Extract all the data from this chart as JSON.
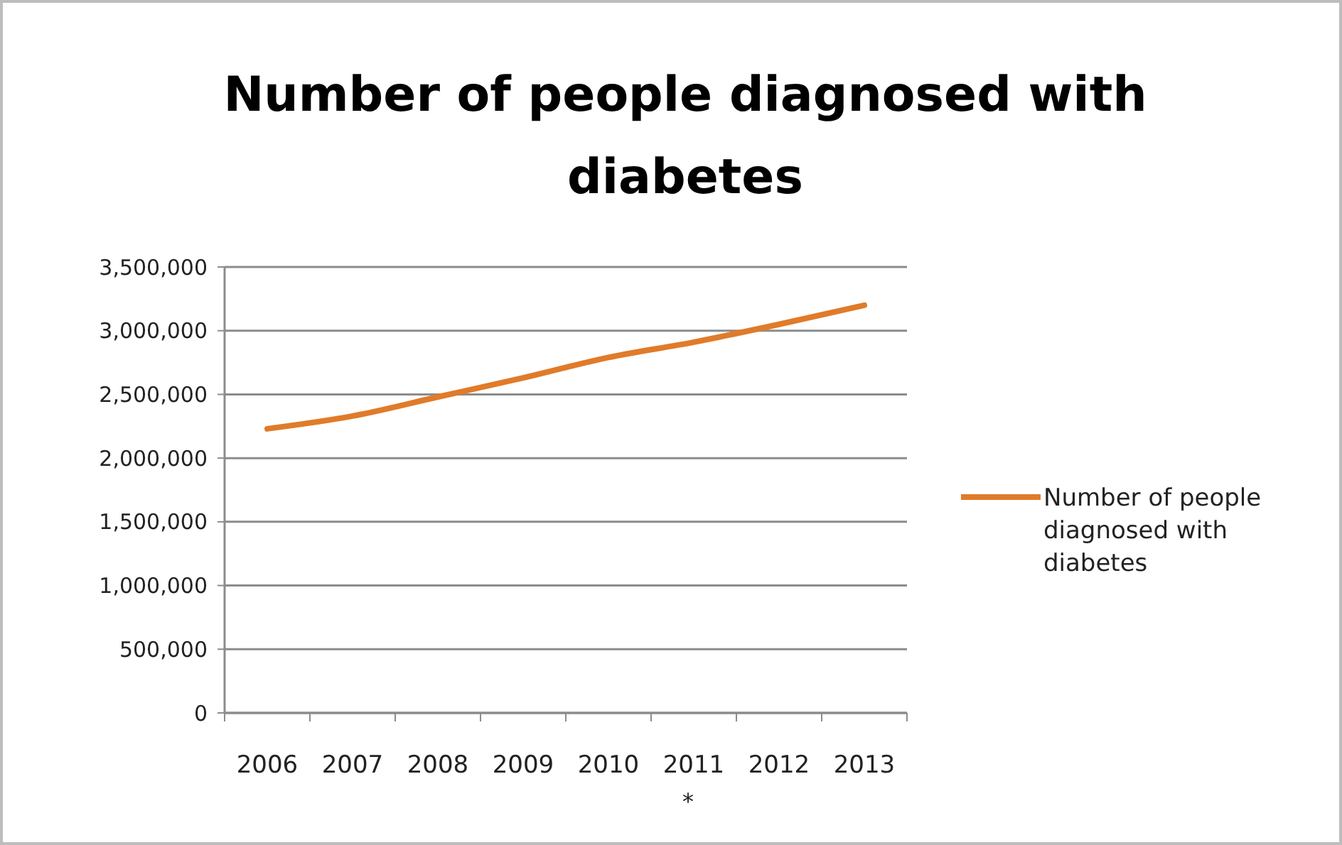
{
  "chart_data": {
    "type": "line",
    "title": "Number of people diagnosed with diabetes",
    "categories": [
      "2006",
      "2007",
      "2008",
      "2009",
      "2010",
      "2011",
      "2012",
      "2013"
    ],
    "series": [
      {
        "name": "Number of people diagnosed with diabetes",
        "color": "#e07b2a",
        "values": [
          2230000,
          2330000,
          2480000,
          2630000,
          2790000,
          2910000,
          3050000,
          3200000
        ]
      }
    ],
    "ylim": [
      0,
      3500000
    ],
    "yticks": [
      {
        "value": 0,
        "label": "0"
      },
      {
        "value": 500000,
        "label": "500,000"
      },
      {
        "value": 1000000,
        "label": "1,000,000"
      },
      {
        "value": 1500000,
        "label": "1,500,000"
      },
      {
        "value": 2000000,
        "label": "2,000,000"
      },
      {
        "value": 2500000,
        "label": "2,500,000"
      },
      {
        "value": 3000000,
        "label": "3,000,000"
      },
      {
        "value": 3500000,
        "label": "3,500,000"
      }
    ],
    "grid": "y",
    "legend": "right",
    "marker": "none",
    "line_style": "solid",
    "annotations": [
      "*"
    ]
  }
}
